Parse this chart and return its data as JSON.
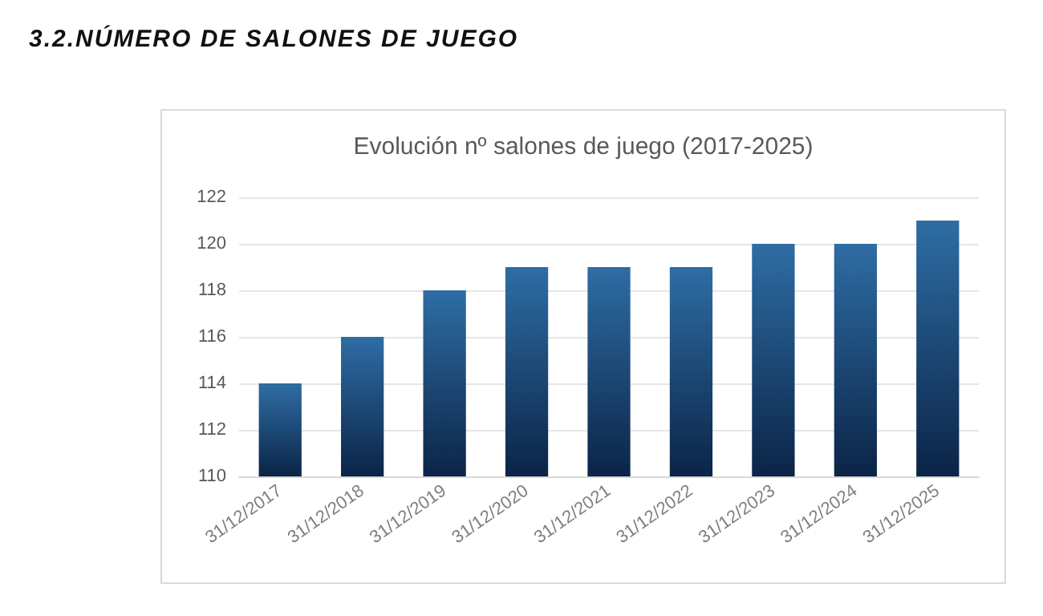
{
  "chart_data": {
    "type": "bar",
    "title": "3.2.NÚMERO DE SALONES DE JUEGO",
    "subtitle": "Evolución nº salones de juego (2017-2025)",
    "categories": [
      "31/12/2017",
      "31/12/2018",
      "31/12/2019",
      "31/12/2020",
      "31/12/2021",
      "31/12/2022",
      "31/12/2023",
      "31/12/2024",
      "31/12/2025"
    ],
    "values": [
      114,
      116,
      118,
      119,
      119,
      119,
      120,
      120,
      121
    ],
    "color": "#2e6da4",
    "ylim": [
      110,
      122
    ],
    "yticks": [
      110,
      112,
      114,
      116,
      118,
      120,
      122
    ],
    "grid": "y"
  }
}
